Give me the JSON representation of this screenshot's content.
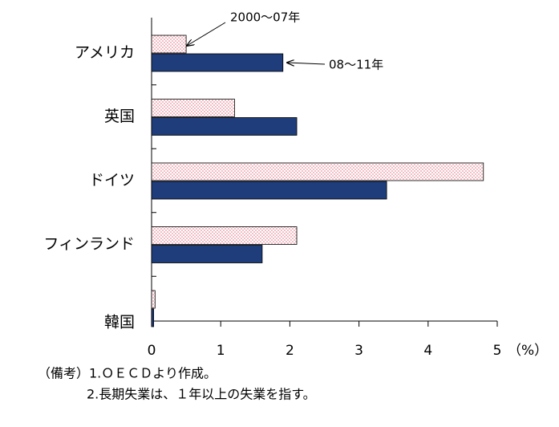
{
  "chart_data": {
    "type": "bar",
    "orientation": "horizontal",
    "categories": [
      "アメリカ",
      "英国",
      "ドイツ",
      "フィンランド",
      "韓国"
    ],
    "series": [
      {
        "name": "2000～07年",
        "color": "#e07080",
        "pattern": "dots",
        "values": [
          0.5,
          1.2,
          4.8,
          2.1,
          0.05
        ]
      },
      {
        "name": "08～11年",
        "color": "#1f3d7a",
        "values": [
          1.9,
          2.1,
          3.4,
          1.6,
          0.03
        ]
      }
    ],
    "xlim": [
      0,
      5
    ],
    "xticks": [
      0,
      1,
      2,
      3,
      4,
      5
    ],
    "x_unit": "（%）",
    "notes": [
      "（備考）1.ＯＥＣＤより作成。",
      "2.長期失業は、１年以上の失業を指す。"
    ]
  }
}
